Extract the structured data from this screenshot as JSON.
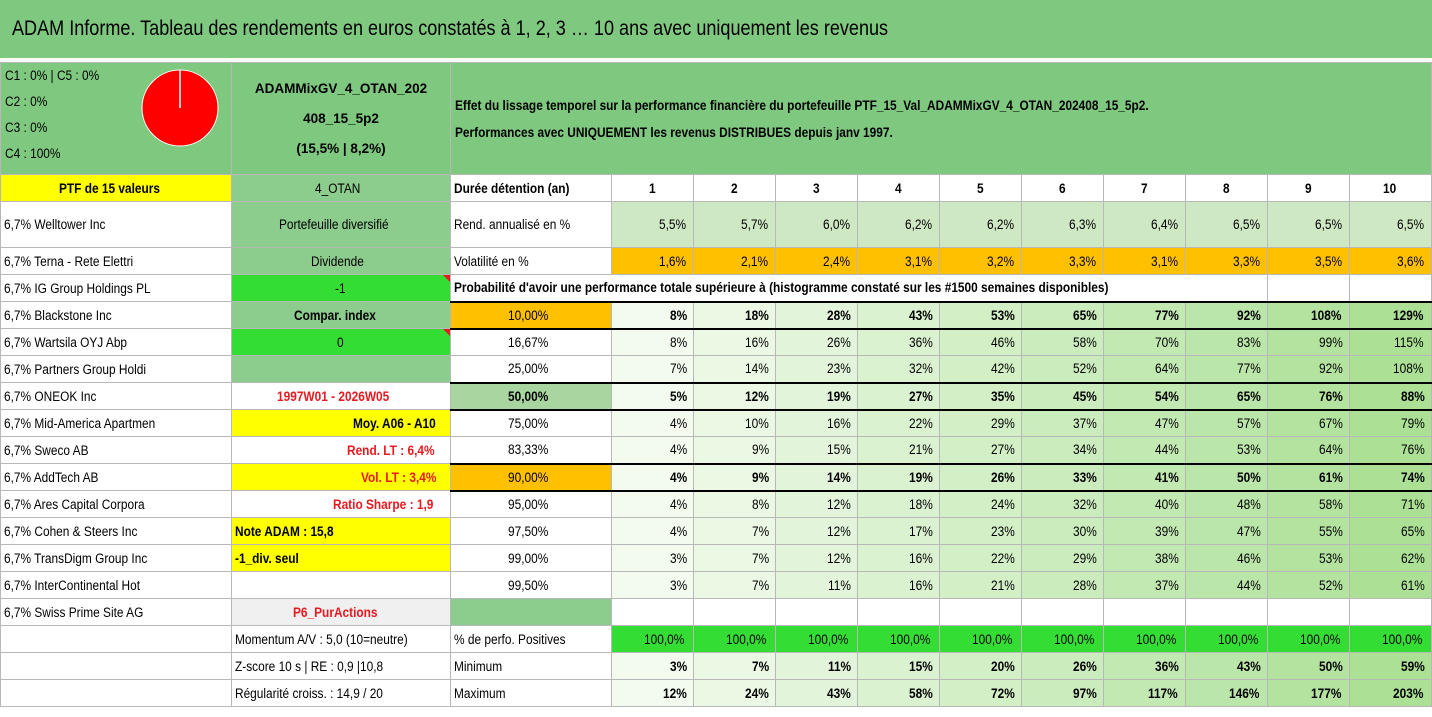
{
  "title": "ADAM Informe. Tableau des rendements en euros constatés à 1, 2, 3 … 10 ans avec uniquement les revenus",
  "allocation": [
    "C1 : 0% | C5 : 0%",
    "C2 : 0%",
    "C3 : 0%",
    "C4 : 100%"
  ],
  "portfolio_name": {
    "line1": "ADAMMixGV_4_OTAN_202",
    "line2": "408_15_5p2",
    "line3": "(15,5% | 8,2%)"
  },
  "description": {
    "line1": "Effet du lissage temporel sur la performance financière du portefeuille PTF_15_Val_ADAMMixGV_4_OTAN_202408_15_5p2.",
    "line2": "Performances avec UNIQUEMENT les revenus DISTRIBUES depuis janv 1997."
  },
  "ptf_label": "PTF de 15 valeurs",
  "otan_label": "4_OTAN",
  "duration_label": "Durée détention (an)",
  "years": [
    "1",
    "2",
    "3",
    "4",
    "5",
    "6",
    "7",
    "8",
    "9",
    "10"
  ],
  "holdings": [
    "6,7% Welltower Inc",
    "6,7% Terna - Rete Elettri",
    "6,7% IG Group Holdings PL",
    "6,7% Blackstone Inc",
    "6,7% Wartsila OYJ Abp",
    "6,7% Partners Group Holdi",
    "6,7% ONEOK Inc",
    "6,7% Mid-America Apartmen",
    "6,7% Sweco AB",
    "6,7% AddTech AB",
    "6,7% Ares Capital Corpora",
    "6,7% Cohen & Steers Inc",
    "6,7% TransDigm Group Inc",
    "6,7% InterContinental Hot",
    "6,7% Swiss Prime Site AG"
  ],
  "side": {
    "diversified": "Portefeuille diversifié",
    "dividende": "Dividende",
    "minus1": "-1",
    "compar": "Compar. index",
    "zero": "0",
    "period": "1997W01 - 2026W05",
    "moy": "Moy. A06 - A10",
    "rend_lt": "Rend. LT : 6,4%",
    "vol_lt": "Vol. LT : 3,4%",
    "sharpe": "Ratio Sharpe : 1,9",
    "note": "Note ADAM : 15,8",
    "div_seul": "-1_div. seul",
    "p6": "P6_PurActions",
    "momentum": "Momentum A/V : 5,0 (10=neutre)",
    "zscore": "Z-score 10 s | RE : 0,9 |10,8",
    "regul": "Régularité croiss. : 14,9 / 20"
  },
  "rend": {
    "label": "Rend. annualisé en %",
    "values": [
      "5,5%",
      "5,7%",
      "6,0%",
      "6,2%",
      "6,2%",
      "6,3%",
      "6,4%",
      "6,5%",
      "6,5%",
      "6,5%"
    ]
  },
  "vol": {
    "label": "Volatilité en %",
    "values": [
      "1,6%",
      "2,1%",
      "2,4%",
      "3,1%",
      "3,2%",
      "3,3%",
      "3,1%",
      "3,3%",
      "3,5%",
      "3,6%"
    ]
  },
  "proba_label": "Probabilité d'avoir une performance totale supérieure à (histogramme constaté sur les #1500 semaines disponibles)",
  "proba_rows": [
    {
      "p": "10,00%",
      "v": [
        "8%",
        "18%",
        "28%",
        "43%",
        "53%",
        "65%",
        "77%",
        "92%",
        "108%",
        "129%"
      ]
    },
    {
      "p": "16,67%",
      "v": [
        "8%",
        "16%",
        "26%",
        "36%",
        "46%",
        "58%",
        "70%",
        "83%",
        "99%",
        "115%"
      ]
    },
    {
      "p": "25,00%",
      "v": [
        "7%",
        "14%",
        "23%",
        "32%",
        "42%",
        "52%",
        "64%",
        "77%",
        "92%",
        "108%"
      ]
    },
    {
      "p": "50,00%",
      "v": [
        "5%",
        "12%",
        "19%",
        "27%",
        "35%",
        "45%",
        "54%",
        "65%",
        "76%",
        "88%"
      ]
    },
    {
      "p": "75,00%",
      "v": [
        "4%",
        "10%",
        "16%",
        "22%",
        "29%",
        "37%",
        "47%",
        "57%",
        "67%",
        "79%"
      ]
    },
    {
      "p": "83,33%",
      "v": [
        "4%",
        "9%",
        "15%",
        "21%",
        "27%",
        "34%",
        "44%",
        "53%",
        "64%",
        "76%"
      ]
    },
    {
      "p": "90,00%",
      "v": [
        "4%",
        "9%",
        "14%",
        "19%",
        "26%",
        "33%",
        "41%",
        "50%",
        "61%",
        "74%"
      ]
    },
    {
      "p": "95,00%",
      "v": [
        "4%",
        "8%",
        "12%",
        "18%",
        "24%",
        "32%",
        "40%",
        "48%",
        "58%",
        "71%"
      ]
    },
    {
      "p": "97,50%",
      "v": [
        "4%",
        "7%",
        "12%",
        "17%",
        "23%",
        "30%",
        "39%",
        "47%",
        "55%",
        "65%"
      ]
    },
    {
      "p": "99,00%",
      "v": [
        "3%",
        "7%",
        "12%",
        "16%",
        "22%",
        "29%",
        "38%",
        "46%",
        "53%",
        "62%"
      ]
    },
    {
      "p": "99,50%",
      "v": [
        "3%",
        "7%",
        "11%",
        "16%",
        "21%",
        "28%",
        "37%",
        "44%",
        "52%",
        "61%"
      ]
    }
  ],
  "positives": {
    "label": "% de perfo. Positives",
    "values": [
      "100,0%",
      "100,0%",
      "100,0%",
      "100,0%",
      "100,0%",
      "100,0%",
      "100,0%",
      "100,0%",
      "100,0%",
      "100,0%"
    ]
  },
  "minimum": {
    "label": "Minimum",
    "values": [
      "3%",
      "7%",
      "11%",
      "15%",
      "20%",
      "26%",
      "36%",
      "43%",
      "50%",
      "59%"
    ]
  },
  "maximum": {
    "label": "Maximum",
    "values": [
      "12%",
      "24%",
      "43%",
      "58%",
      "72%",
      "97%",
      "117%",
      "146%",
      "177%",
      "203%"
    ]
  },
  "colors": {
    "header_green": "#7fc87f",
    "yellow": "#ffff00",
    "orange": "#ffc000",
    "bright_green": "#33dd33",
    "red_text": "#e8191f",
    "pie_red": "#ff0000"
  },
  "pie": {
    "c4_share": 1.0
  }
}
